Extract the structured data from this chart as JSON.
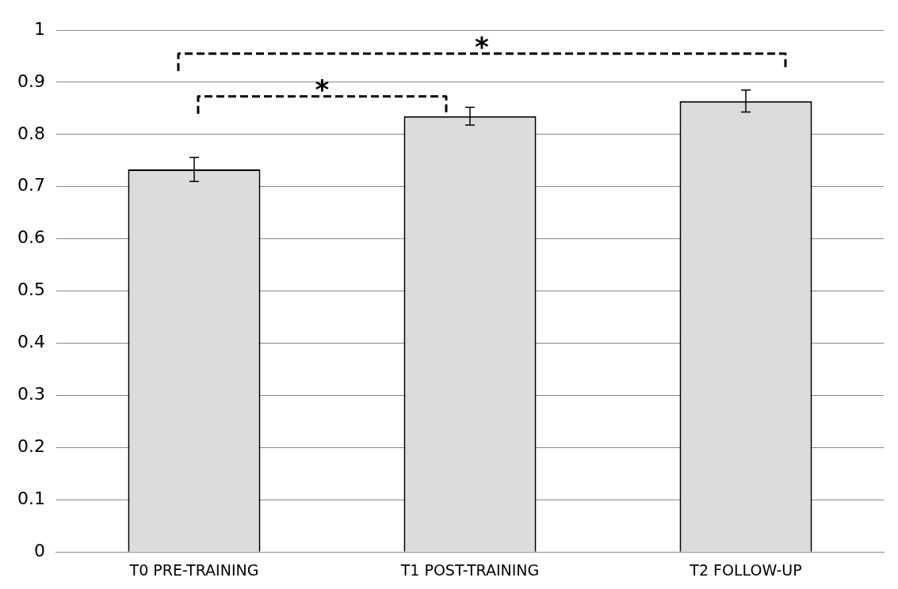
{
  "chart_data": {
    "type": "bar",
    "categories": [
      "T0 PRE-TRAINING",
      "T1 POST-TRAINING",
      "T2 FOLLOW-UP"
    ],
    "values": [
      0.733,
      0.835,
      0.864
    ],
    "errors": [
      0.023,
      0.017,
      0.021
    ],
    "color": "#dcdcdc",
    "ylim": [
      0,
      1
    ],
    "yticks": [
      0,
      0.1,
      0.2,
      0.3,
      0.4,
      0.5,
      0.6,
      0.7,
      0.8,
      0.9,
      1
    ],
    "grid": "y",
    "legend": false,
    "annotations": [
      "*",
      "*"
    ]
  }
}
